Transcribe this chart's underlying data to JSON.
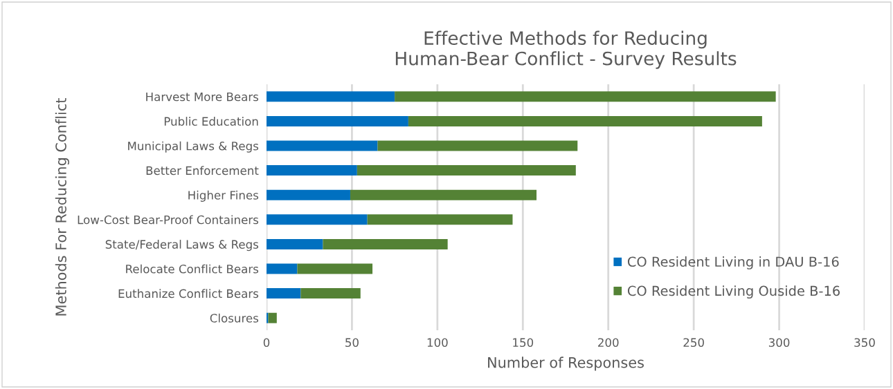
{
  "chart_data": {
    "type": "bar",
    "orientation": "horizontal",
    "stacked": true,
    "title": "Effective Methods for Reducing\nHuman-Bear Conflict - Survey Results",
    "xlabel": "Number of Responses",
    "ylabel": "Methods For Reducing Conflict",
    "categories": [
      "Harvest More Bears",
      "Public Education",
      "Municipal Laws & Regs",
      "Better Enforcement",
      "Higher Fines",
      "Low-Cost Bear-Proof Containers",
      "State/Federal Laws & Regs",
      "Relocate Conflict Bears",
      "Euthanize Conflict Bears",
      "Closures"
    ],
    "series": [
      {
        "name": "CO Resident Living in DAU B-16",
        "color": "#0070c0",
        "values": [
          75,
          83,
          65,
          53,
          49,
          59,
          33,
          18,
          20,
          1
        ]
      },
      {
        "name": "CO Resident Living Ouside B-16",
        "color": "#548235",
        "values": [
          223,
          207,
          117,
          128,
          109,
          85,
          73,
          44,
          35,
          5
        ]
      }
    ],
    "xlim": [
      0,
      350
    ],
    "xticks": [
      0,
      50,
      100,
      150,
      200,
      250,
      300,
      350
    ],
    "grid": "x",
    "legend": "bottom right"
  }
}
